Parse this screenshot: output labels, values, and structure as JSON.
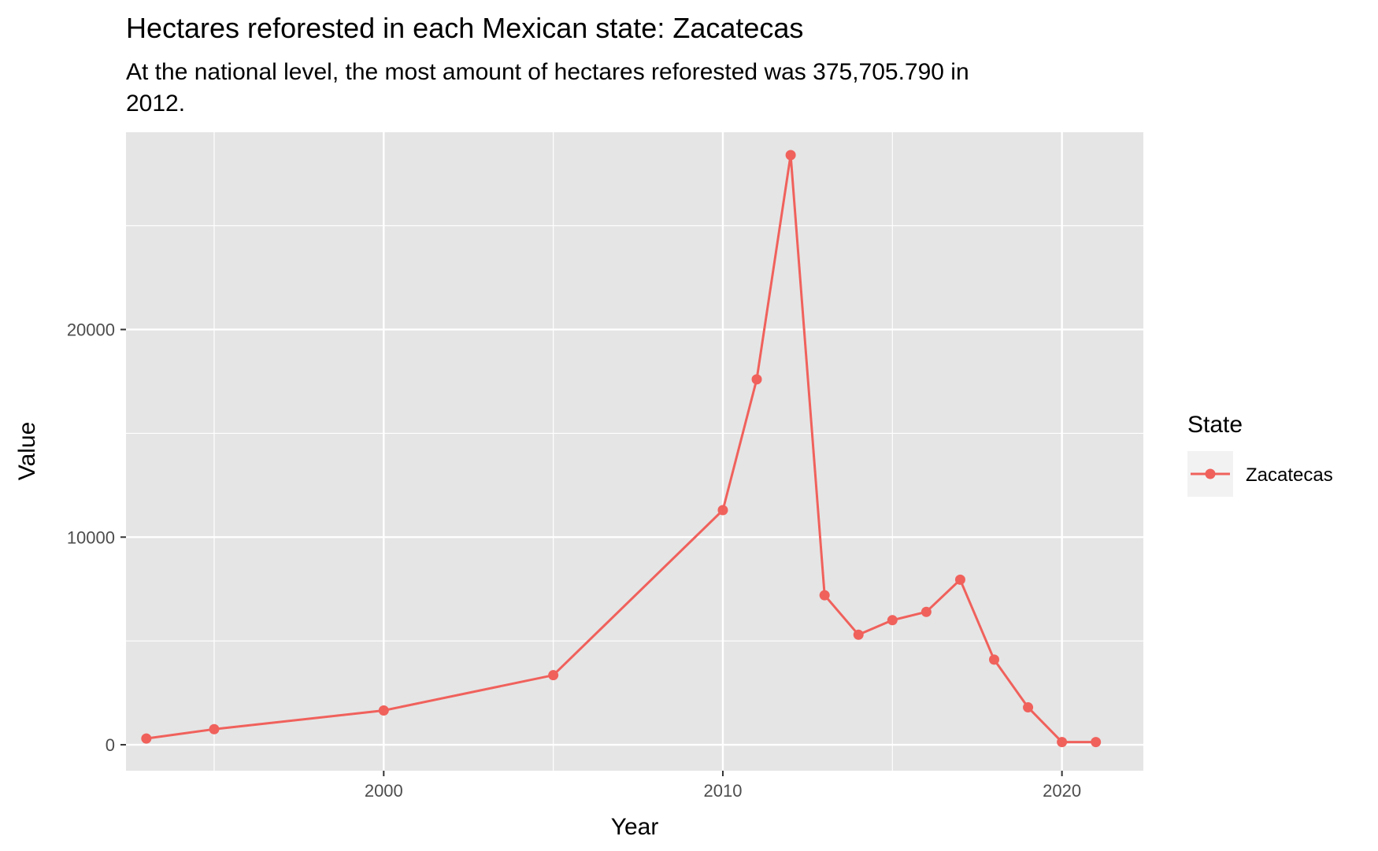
{
  "chart_data": {
    "type": "line",
    "title": "Hectares reforested in each Mexican state: Zacatecas",
    "subtitle_lines": [
      "At the national level, the most amount of hectares reforested was 375,705.790 in",
      "2012."
    ],
    "xlabel": "Year",
    "ylabel": "Value",
    "xlim": [
      1992.4,
      2022.4
    ],
    "ylim": [
      -1250,
      29500
    ],
    "x_ticks": [
      2000,
      2010,
      2020
    ],
    "x_minor_ticks": [
      1995,
      2005,
      2015
    ],
    "y_ticks": [
      0,
      10000,
      20000
    ],
    "y_minor_ticks": [
      5000,
      15000,
      25000
    ],
    "grid": true,
    "legend": {
      "title": "State",
      "position": "right"
    },
    "series": [
      {
        "name": "Zacatecas",
        "color": "#f0615c",
        "x": [
          1993,
          1995,
          2000,
          2005,
          2010,
          2011,
          2012,
          2013,
          2014,
          2015,
          2016,
          2017,
          2018,
          2019,
          2020,
          2021
        ],
        "y": [
          300,
          750,
          1650,
          3350,
          11300,
          17600,
          28400,
          7200,
          5300,
          6000,
          6400,
          7950,
          4100,
          1800,
          130,
          130
        ]
      }
    ]
  },
  "colors": {
    "panel_background": "#e5e5e5",
    "grid_line": "#ffffff",
    "tick_text": "#4d4d4d",
    "legend_key_background": "#f2f2f2"
  }
}
